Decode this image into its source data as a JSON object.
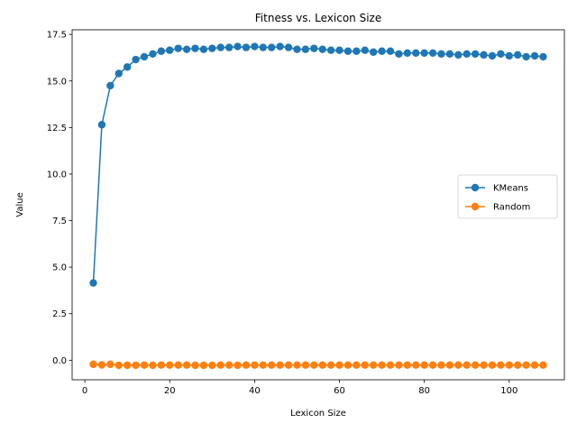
{
  "chart_data": {
    "type": "line",
    "title": "Fitness vs. Lexicon Size",
    "xlabel": "Lexicon Size",
    "ylabel": "Value",
    "xlim": [
      -3,
      113
    ],
    "ylim": [
      -1.05,
      17.75
    ],
    "xticks": [
      0,
      20,
      40,
      60,
      80,
      100
    ],
    "yticks": [
      0.0,
      2.5,
      5.0,
      7.5,
      10.0,
      12.5,
      15.0,
      17.5
    ],
    "grid": false,
    "legend": "center-right",
    "x": [
      2,
      4,
      6,
      8,
      10,
      12,
      14,
      16,
      18,
      20,
      22,
      24,
      26,
      28,
      30,
      32,
      34,
      36,
      38,
      40,
      42,
      44,
      46,
      48,
      50,
      52,
      54,
      56,
      58,
      60,
      62,
      64,
      66,
      68,
      70,
      72,
      74,
      76,
      78,
      80,
      82,
      84,
      86,
      88,
      90,
      92,
      94,
      96,
      98,
      100,
      102,
      104,
      106,
      108
    ],
    "series": [
      {
        "name": "KMeans",
        "color": "#1f77b4",
        "values": [
          4.15,
          12.65,
          14.75,
          15.4,
          15.75,
          16.15,
          16.3,
          16.45,
          16.6,
          16.65,
          16.75,
          16.7,
          16.75,
          16.7,
          16.75,
          16.8,
          16.8,
          16.85,
          16.8,
          16.85,
          16.8,
          16.8,
          16.85,
          16.8,
          16.7,
          16.7,
          16.75,
          16.7,
          16.65,
          16.65,
          16.6,
          16.6,
          16.65,
          16.55,
          16.6,
          16.6,
          16.45,
          16.5,
          16.5,
          16.5,
          16.5,
          16.45,
          16.45,
          16.4,
          16.45,
          16.45,
          16.4,
          16.35,
          16.45,
          16.35,
          16.4,
          16.3,
          16.35,
          16.3
        ]
      },
      {
        "name": "Random",
        "color": "#ff7f0e",
        "values": [
          -0.22,
          -0.25,
          -0.22,
          -0.27,
          -0.27,
          -0.27,
          -0.26,
          -0.27,
          -0.26,
          -0.26,
          -0.26,
          -0.26,
          -0.27,
          -0.27,
          -0.27,
          -0.26,
          -0.26,
          -0.27,
          -0.26,
          -0.26,
          -0.26,
          -0.26,
          -0.26,
          -0.26,
          -0.26,
          -0.26,
          -0.26,
          -0.26,
          -0.26,
          -0.26,
          -0.26,
          -0.26,
          -0.26,
          -0.26,
          -0.26,
          -0.26,
          -0.26,
          -0.26,
          -0.26,
          -0.26,
          -0.26,
          -0.26,
          -0.26,
          -0.26,
          -0.26,
          -0.26,
          -0.26,
          -0.26,
          -0.26,
          -0.26,
          -0.26,
          -0.26,
          -0.26,
          -0.26
        ]
      }
    ]
  }
}
